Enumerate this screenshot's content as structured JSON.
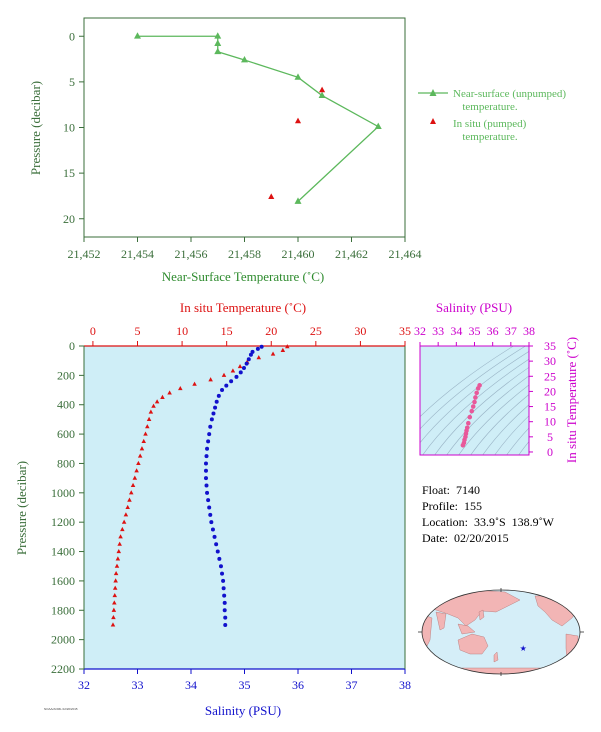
{
  "colors": {
    "green": "#5cb85c",
    "axis_green": "#3a6e3a",
    "red": "#dd1111",
    "blue": "#1111cc",
    "magenta": "#cc00cc",
    "pink": "#e8589a",
    "plot_bg": "#cfeef7",
    "land": "#f2b5b5",
    "ocean": "#d5eef8"
  },
  "chart_data": [
    {
      "type": "line",
      "xlabel": "Near-Surface Temperature (˚C)",
      "ylabel": "Pressure (decibar)",
      "xlim": [
        21.452,
        21.464
      ],
      "ylim": [
        22,
        -2
      ],
      "x_ticks": [
        "21,452",
        "21,454",
        "21,456",
        "21,458",
        "21,460",
        "21,462",
        "21,464"
      ],
      "y_ticks": [
        "0",
        "5",
        "10",
        "15",
        "20"
      ],
      "series": [
        {
          "name": "Near-surface (unpumped) temperature.",
          "marker": "triangle",
          "points": [
            [
              21.454,
              0.0
            ],
            [
              21.457,
              0.0
            ],
            [
              21.457,
              0.8
            ],
            [
              21.457,
              1.7
            ],
            [
              21.458,
              2.6
            ],
            [
              21.46,
              4.5
            ],
            [
              21.4609,
              6.5
            ],
            [
              21.463,
              9.9
            ],
            [
              21.46,
              18.1
            ]
          ]
        },
        {
          "name": "In situ (pumped) temperature.",
          "marker": "triangle",
          "points": [
            [
              21.4609,
              5.9
            ],
            [
              21.46,
              9.3
            ],
            [
              21.459,
              17.6
            ]
          ]
        }
      ],
      "legend": [
        {
          "line1": "Near-surface (unpumped)",
          "line2": "temperature."
        },
        {
          "line1": "In situ (pumped)",
          "line2": "temperature."
        }
      ]
    },
    {
      "type": "scatter",
      "top_xlabel": "In situ Temperature (˚C)",
      "bottom_xlabel": "Salinity (PSU)",
      "ylabel": "Pressure (decibar)",
      "temp_lim": [
        -1,
        35
      ],
      "sal_lim": [
        32,
        38
      ],
      "ylim": [
        0,
        2200
      ],
      "temp_ticks": [
        "0",
        "5",
        "10",
        "15",
        "20",
        "25",
        "30",
        "35"
      ],
      "sal_ticks": [
        "32",
        "33",
        "34",
        "35",
        "36",
        "37",
        "38"
      ],
      "y_ticks": [
        "0",
        "200",
        "400",
        "600",
        "800",
        "1000",
        "1200",
        "1400",
        "1600",
        "1800",
        "2000",
        "2200"
      ],
      "temperature_profile": [
        [
          21.8,
          5
        ],
        [
          21.3,
          30
        ],
        [
          20.2,
          55
        ],
        [
          18.6,
          80
        ],
        [
          17.3,
          110
        ],
        [
          16.5,
          140
        ],
        [
          15.7,
          170
        ],
        [
          14.7,
          200
        ],
        [
          13.2,
          230
        ],
        [
          11.4,
          260
        ],
        [
          9.8,
          290
        ],
        [
          8.6,
          320
        ],
        [
          7.8,
          350
        ],
        [
          7.2,
          380
        ],
        [
          6.8,
          410
        ],
        [
          6.5,
          450
        ],
        [
          6.3,
          500
        ],
        [
          6.1,
          550
        ],
        [
          5.9,
          600
        ],
        [
          5.7,
          650
        ],
        [
          5.5,
          700
        ],
        [
          5.3,
          750
        ],
        [
          5.1,
          800
        ],
        [
          4.9,
          850
        ],
        [
          4.7,
          900
        ],
        [
          4.5,
          950
        ],
        [
          4.3,
          1000
        ],
        [
          4.1,
          1050
        ],
        [
          3.9,
          1100
        ],
        [
          3.7,
          1150
        ],
        [
          3.5,
          1200
        ],
        [
          3.3,
          1250
        ],
        [
          3.1,
          1300
        ],
        [
          3.0,
          1350
        ],
        [
          2.9,
          1400
        ],
        [
          2.8,
          1450
        ],
        [
          2.7,
          1500
        ],
        [
          2.6,
          1550
        ],
        [
          2.55,
          1600
        ],
        [
          2.5,
          1650
        ],
        [
          2.45,
          1700
        ],
        [
          2.4,
          1750
        ],
        [
          2.35,
          1800
        ],
        [
          2.3,
          1850
        ],
        [
          2.25,
          1900
        ]
      ],
      "salinity_profile": [
        [
          35.32,
          5
        ],
        [
          35.25,
          20
        ],
        [
          35.15,
          40
        ],
        [
          35.12,
          60
        ],
        [
          35.08,
          90
        ],
        [
          35.04,
          120
        ],
        [
          34.99,
          150
        ],
        [
          34.93,
          180
        ],
        [
          34.85,
          210
        ],
        [
          34.75,
          240
        ],
        [
          34.66,
          270
        ],
        [
          34.58,
          300
        ],
        [
          34.52,
          340
        ],
        [
          34.48,
          380
        ],
        [
          34.45,
          420
        ],
        [
          34.42,
          460
        ],
        [
          34.39,
          500
        ],
        [
          34.36,
          550
        ],
        [
          34.34,
          600
        ],
        [
          34.32,
          650
        ],
        [
          34.3,
          700
        ],
        [
          34.29,
          750
        ],
        [
          34.28,
          800
        ],
        [
          34.28,
          850
        ],
        [
          34.28,
          900
        ],
        [
          34.29,
          950
        ],
        [
          34.3,
          1000
        ],
        [
          34.32,
          1050
        ],
        [
          34.34,
          1100
        ],
        [
          34.36,
          1150
        ],
        [
          34.38,
          1200
        ],
        [
          34.41,
          1250
        ],
        [
          34.44,
          1300
        ],
        [
          34.47,
          1350
        ],
        [
          34.5,
          1400
        ],
        [
          34.53,
          1450
        ],
        [
          34.56,
          1500
        ],
        [
          34.58,
          1550
        ],
        [
          34.6,
          1600
        ],
        [
          34.61,
          1650
        ],
        [
          34.62,
          1700
        ],
        [
          34.63,
          1750
        ],
        [
          34.63,
          1800
        ],
        [
          34.64,
          1850
        ],
        [
          34.64,
          1900
        ]
      ]
    },
    {
      "type": "scatter",
      "top_xlabel": "Salinity (PSU)",
      "right_ylabel": "In situ Temperature (˚C)",
      "sal_lim": [
        32,
        38
      ],
      "temp_lim": [
        -1,
        35
      ],
      "x_ticks": [
        "32",
        "33",
        "34",
        "35",
        "36",
        "37",
        "38"
      ],
      "y_ticks": [
        "0",
        "5",
        "10",
        "15",
        "20",
        "25",
        "30",
        "35"
      ],
      "ts_points": [
        [
          34.36,
          2.2
        ],
        [
          34.42,
          3.0
        ],
        [
          34.45,
          4.0
        ],
        [
          34.5,
          5.0
        ],
        [
          34.53,
          6.0
        ],
        [
          34.56,
          7.0
        ],
        [
          34.6,
          8.0
        ],
        [
          34.66,
          9.5
        ],
        [
          34.74,
          11.5
        ],
        [
          34.85,
          13.5
        ],
        [
          34.93,
          15.0
        ],
        [
          35.0,
          16.5
        ],
        [
          35.05,
          18.0
        ],
        [
          35.12,
          19.5
        ],
        [
          35.2,
          21.0
        ],
        [
          35.28,
          22.0
        ]
      ]
    }
  ],
  "float_info": {
    "float_line": "Float:  7140",
    "profile_line": "Profile:  155",
    "location_line": "Location:  33.9˚S  138.9˚W",
    "date_line": "Date:  02/20/2015"
  },
  "map": {
    "marker_lon": -138.9,
    "marker_lat": -33.9
  },
  "footnote": "NOAA/AOML  02/20/2015"
}
